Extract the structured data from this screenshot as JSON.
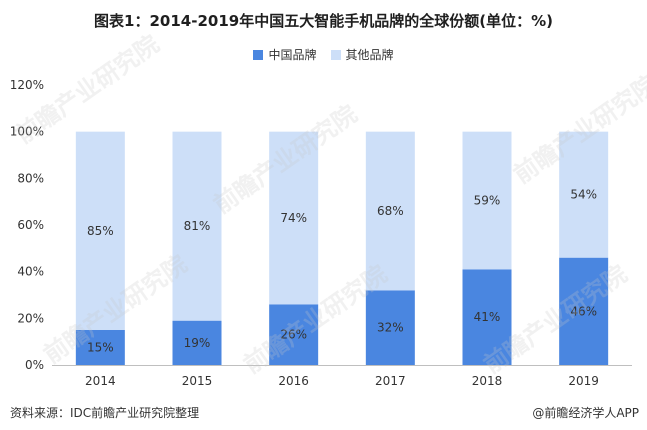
{
  "title": "图表1：2014-2019年中国五大智能手机品牌的全球份额(单位：%)",
  "source": "资料来源：IDC前瞻产业研究院整理",
  "brand": "@前瞻经济学人APP",
  "watermark": "前瞻产业研究院",
  "colors": {
    "china": "#4a86e0",
    "other": "#cddff8",
    "axis": "#bfbfbf",
    "text": "#333333"
  },
  "chart_data": {
    "type": "bar",
    "stacked": true,
    "percent": true,
    "categories": [
      "2014",
      "2015",
      "2016",
      "2017",
      "2018",
      "2019"
    ],
    "series": [
      {
        "name": "中国品牌",
        "values": [
          15,
          19,
          26,
          32,
          41,
          46
        ],
        "labels": [
          "15%",
          "19%",
          "26%",
          "32%",
          "41%",
          "46%"
        ]
      },
      {
        "name": "其他品牌",
        "values": [
          85,
          81,
          74,
          68,
          59,
          54
        ],
        "labels": [
          "85%",
          "81%",
          "74%",
          "68%",
          "59%",
          "54%"
        ]
      }
    ],
    "yticks": [
      "0%",
      "20%",
      "40%",
      "60%",
      "80%",
      "100%",
      "120%"
    ],
    "ylim": [
      0,
      120
    ],
    "legend_position": "top",
    "grid": false
  }
}
